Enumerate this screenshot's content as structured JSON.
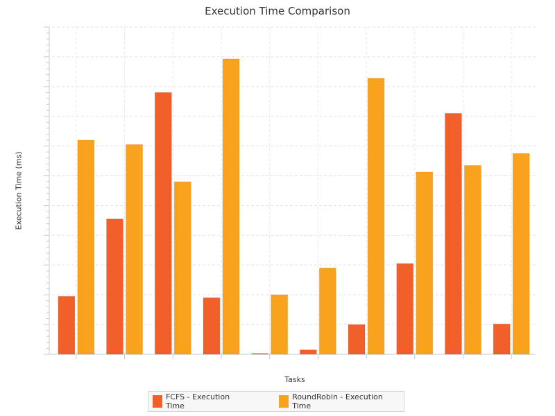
{
  "chart_data": {
    "type": "bar",
    "title": "Execution Time Comparison",
    "xlabel": "Tasks",
    "ylabel": "Execution Time (ms)",
    "categories": [
      "",
      "",
      "",
      "",
      "",
      "",
      "",
      "",
      "",
      ""
    ],
    "ylim": [
      0,
      110
    ],
    "grid": true,
    "legend_position": "bottom",
    "series": [
      {
        "name": "FCFS - Execution Time",
        "color": "#f15f2b",
        "values": [
          19.5,
          45.5,
          88,
          19,
          0.3,
          1.5,
          10,
          30.5,
          81,
          10.2
        ]
      },
      {
        "name": "RoundRobin - Execution Time",
        "color": "#f8a21d",
        "values": [
          72,
          70.5,
          58,
          99.3,
          20,
          29,
          92.8,
          61.3,
          63.5,
          67.5
        ]
      }
    ]
  }
}
